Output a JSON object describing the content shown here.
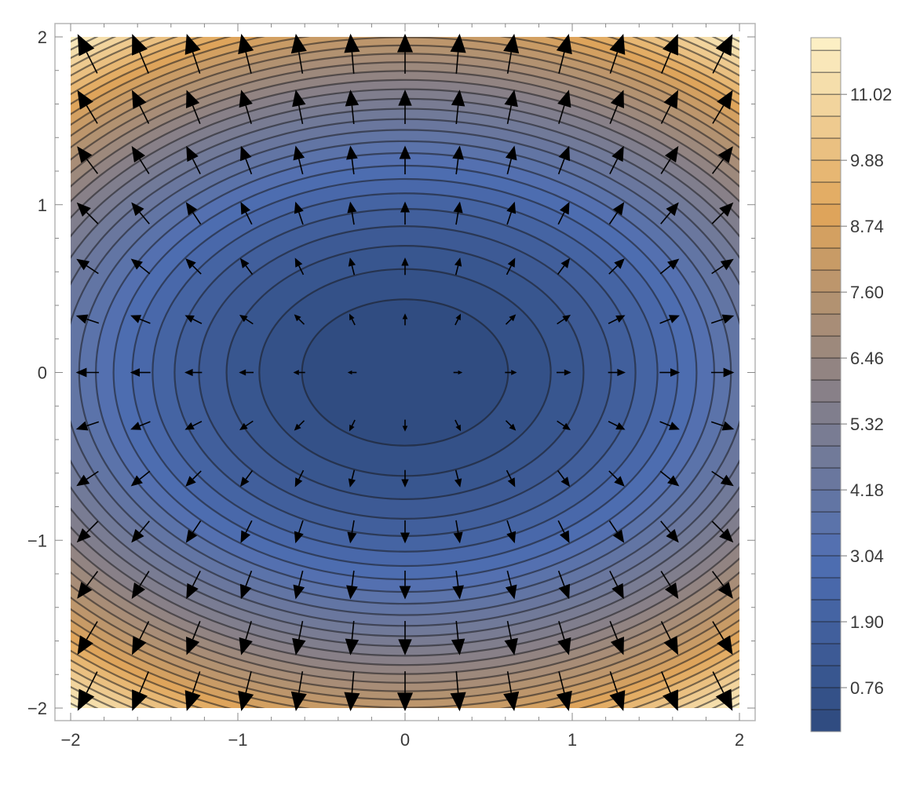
{
  "chart_data": {
    "type": "heatmap",
    "subtype": "contour-with-vector-field",
    "title": "",
    "xlabel": "",
    "ylabel": "",
    "function": "x^2 + 2*y^2",
    "gradient_field": "(2x, 4y)",
    "xlim": [
      -2,
      2
    ],
    "ylim": [
      -2,
      2
    ],
    "x_ticks": [
      -2,
      -1,
      0,
      1,
      2
    ],
    "y_ticks": [
      -2,
      -1,
      0,
      1,
      2
    ],
    "x_tick_labels": [
      "−2",
      "−1",
      "0",
      "1",
      "2"
    ],
    "y_tick_labels": [
      "−2",
      "−1",
      "0",
      "1",
      "2"
    ],
    "contour_levels": [
      0.38,
      0.76,
      1.14,
      1.52,
      1.9,
      2.28,
      2.66,
      3.04,
      3.42,
      3.8,
      4.18,
      4.56,
      4.94,
      5.32,
      5.7,
      6.08,
      6.46,
      6.84,
      7.22,
      7.6,
      7.98,
      8.36,
      8.74,
      9.12,
      9.5,
      9.88,
      10.26,
      10.64,
      11.02,
      11.4,
      11.78
    ],
    "value_range": [
      0,
      12
    ],
    "vector_grid": {
      "min": -1.9,
      "max": 1.9,
      "count": 13
    },
    "colorbar": {
      "ticks": [
        0.76,
        1.9,
        3.04,
        4.18,
        5.32,
        6.46,
        7.6,
        8.74,
        9.88,
        11.02
      ],
      "tick_labels": [
        "0.76",
        "1.90",
        "3.04",
        "4.18",
        "5.32",
        "6.46",
        "7.60",
        "8.74",
        "9.88",
        "11.02"
      ],
      "range": [
        0,
        12
      ],
      "placement": "right"
    },
    "colormap": [
      "#2e4a7e",
      "#4f6fb3",
      "#8a8186",
      "#e0a55a",
      "#fdf2c8"
    ],
    "grid": false,
    "legend": "none"
  }
}
